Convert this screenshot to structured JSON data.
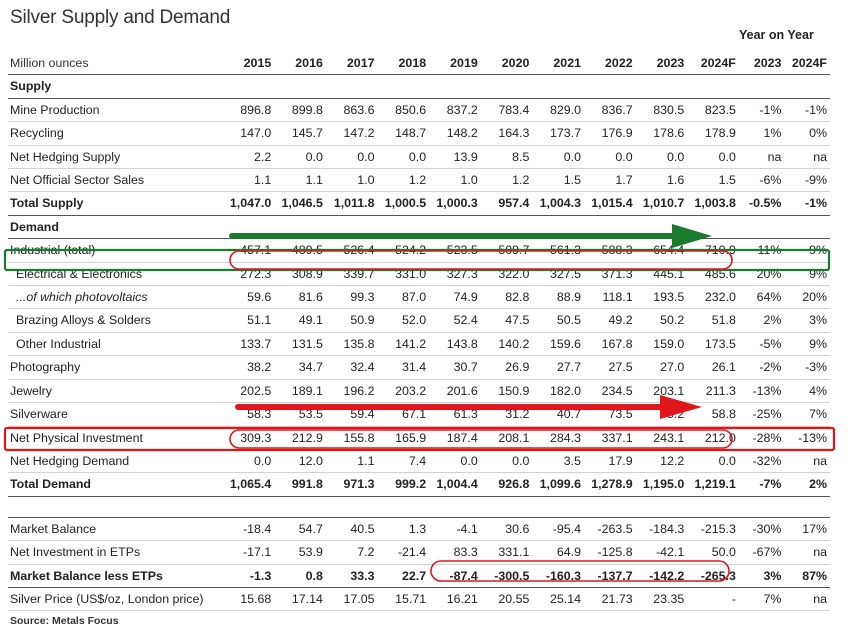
{
  "title": "Silver Supply and Demand",
  "yoy_header": "Year on Year",
  "source": "Source: Metals Focus",
  "colors": {
    "green": "#1a7a2e",
    "red": "#e0161b"
  },
  "chart_data": {
    "type": "table",
    "units_label": "Million ounces",
    "columns": [
      "2015",
      "2016",
      "2017",
      "2018",
      "2019",
      "2020",
      "2021",
      "2022",
      "2023",
      "2024F",
      "2023",
      "2024F"
    ],
    "rows": [
      {
        "label": "Supply",
        "style": "section",
        "values": [
          "",
          "",
          "",
          "",
          "",
          "",
          "",
          "",
          "",
          "",
          "",
          ""
        ]
      },
      {
        "label": "Mine Production",
        "style": "normal",
        "values": [
          "896.8",
          "899.8",
          "863.6",
          "850.6",
          "837.2",
          "783.4",
          "829.0",
          "836.7",
          "830.5",
          "823.5",
          "-1%",
          "-1%"
        ]
      },
      {
        "label": "Recycling",
        "style": "normal",
        "values": [
          "147.0",
          "145.7",
          "147.2",
          "148.7",
          "148.2",
          "164.3",
          "173.7",
          "176.9",
          "178.6",
          "178.9",
          "1%",
          "0%"
        ]
      },
      {
        "label": "Net Hedging Supply",
        "style": "normal",
        "values": [
          "2.2",
          "0.0",
          "0.0",
          "0.0",
          "13.9",
          "8.5",
          "0.0",
          "0.0",
          "0.0",
          "0.0",
          "na",
          "na"
        ]
      },
      {
        "label": "Net Official Sector Sales",
        "style": "normal",
        "values": [
          "1.1",
          "1.1",
          "1.0",
          "1.2",
          "1.0",
          "1.2",
          "1.5",
          "1.7",
          "1.6",
          "1.5",
          "-6%",
          "-9%"
        ]
      },
      {
        "label": "Total Supply",
        "style": "total",
        "values": [
          "1,047.0",
          "1,046.5",
          "1,011.8",
          "1,000.5",
          "1,000.3",
          "957.4",
          "1,004.3",
          "1,015.4",
          "1,010.7",
          "1,003.8",
          "-0.5%",
          "-1%"
        ]
      },
      {
        "label": "Demand",
        "style": "section",
        "values": [
          "",
          "",
          "",
          "",
          "",
          "",
          "",
          "",
          "",
          "",
          "",
          ""
        ]
      },
      {
        "label": "Industrial (total)",
        "style": "normal",
        "values": [
          "457.1",
          "489.5",
          "526.4",
          "524.2",
          "523.5",
          "509.7",
          "561.3",
          "588.3",
          "654.4",
          "710.9",
          "11%",
          "9%"
        ]
      },
      {
        "label": "Electrical & Electronics",
        "style": "sub",
        "values": [
          "272.3",
          "308.9",
          "339.7",
          "331.0",
          "327.3",
          "322.0",
          "327.5",
          "371.3",
          "445.1",
          "485.6",
          "20%",
          "9%"
        ]
      },
      {
        "label": "...of which photovoltaics",
        "style": "subi",
        "values": [
          "59.6",
          "81.6",
          "99.3",
          "87.0",
          "74.9",
          "82.8",
          "88.9",
          "118.1",
          "193.5",
          "232.0",
          "64%",
          "20%"
        ]
      },
      {
        "label": "Brazing Alloys & Solders",
        "style": "sub",
        "values": [
          "51.1",
          "49.1",
          "50.9",
          "52.0",
          "52.4",
          "47.5",
          "50.5",
          "49.2",
          "50.2",
          "51.8",
          "2%",
          "3%"
        ]
      },
      {
        "label": "Other Industrial",
        "style": "sub",
        "values": [
          "133.7",
          "131.5",
          "135.8",
          "141.2",
          "143.8",
          "140.2",
          "159.6",
          "167.8",
          "159.0",
          "173.5",
          "-5%",
          "9%"
        ]
      },
      {
        "label": "Photography",
        "style": "normal",
        "values": [
          "38.2",
          "34.7",
          "32.4",
          "31.4",
          "30.7",
          "26.9",
          "27.7",
          "27.5",
          "27.0",
          "26.1",
          "-2%",
          "-3%"
        ]
      },
      {
        "label": "Jewelry",
        "style": "normal",
        "values": [
          "202.5",
          "189.1",
          "196.2",
          "203.2",
          "201.6",
          "150.9",
          "182.0",
          "234.5",
          "203.1",
          "211.3",
          "-13%",
          "4%"
        ]
      },
      {
        "label": "Silverware",
        "style": "normal",
        "values": [
          "58.3",
          "53.5",
          "59.4",
          "67.1",
          "61.3",
          "31.2",
          "40.7",
          "73.5",
          "55.2",
          "58.8",
          "-25%",
          "7%"
        ]
      },
      {
        "label": "Net Physical Investment",
        "style": "normal",
        "values": [
          "309.3",
          "212.9",
          "155.8",
          "165.9",
          "187.4",
          "208.1",
          "284.3",
          "337.1",
          "243.1",
          "212.0",
          "-28%",
          "-13%"
        ]
      },
      {
        "label": "Net Hedging Demand",
        "style": "normal",
        "values": [
          "0.0",
          "12.0",
          "1.1",
          "7.4",
          "0.0",
          "0.0",
          "3.5",
          "17.9",
          "12.2",
          "0.0",
          "-32%",
          "na"
        ]
      },
      {
        "label": "Total Demand",
        "style": "total",
        "values": [
          "1,065.4",
          "991.8",
          "971.3",
          "999.2",
          "1,004.4",
          "926.8",
          "1,099.6",
          "1,278.9",
          "1,195.0",
          "1,219.1",
          "-7%",
          "2%"
        ]
      },
      {
        "label": "",
        "style": "gap",
        "values": [
          "",
          "",
          "",
          "",
          "",
          "",
          "",
          "",
          "",
          "",
          "",
          ""
        ]
      },
      {
        "label": "Market Balance",
        "style": "normal",
        "values": [
          "-18.4",
          "54.7",
          "40.5",
          "1.3",
          "-4.1",
          "30.6",
          "-95.4",
          "-263.5",
          "-184.3",
          "-215.3",
          "-30%",
          "17%"
        ]
      },
      {
        "label": "Net Investment in ETPs",
        "style": "normal",
        "values": [
          "-17.1",
          "53.9",
          "7.2",
          "-21.4",
          "83.3",
          "331.1",
          "64.9",
          "-125.8",
          "-42.1",
          "50.0",
          "-67%",
          "na"
        ]
      },
      {
        "label": "Market Balance less ETPs",
        "style": "total",
        "values": [
          "-1.3",
          "0.8",
          "33.3",
          "22.7",
          "-87.4",
          "-300.5",
          "-160.3",
          "-137.7",
          "-142.2",
          "-265.3",
          "3%",
          "87%"
        ]
      },
      {
        "label": "Silver Price (US$/oz, London price)",
        "style": "normal",
        "values": [
          "15.68",
          "17.14",
          "17.05",
          "15.71",
          "16.21",
          "20.55",
          "25.14",
          "21.73",
          "23.35",
          "-",
          "7%",
          "na"
        ]
      }
    ]
  }
}
